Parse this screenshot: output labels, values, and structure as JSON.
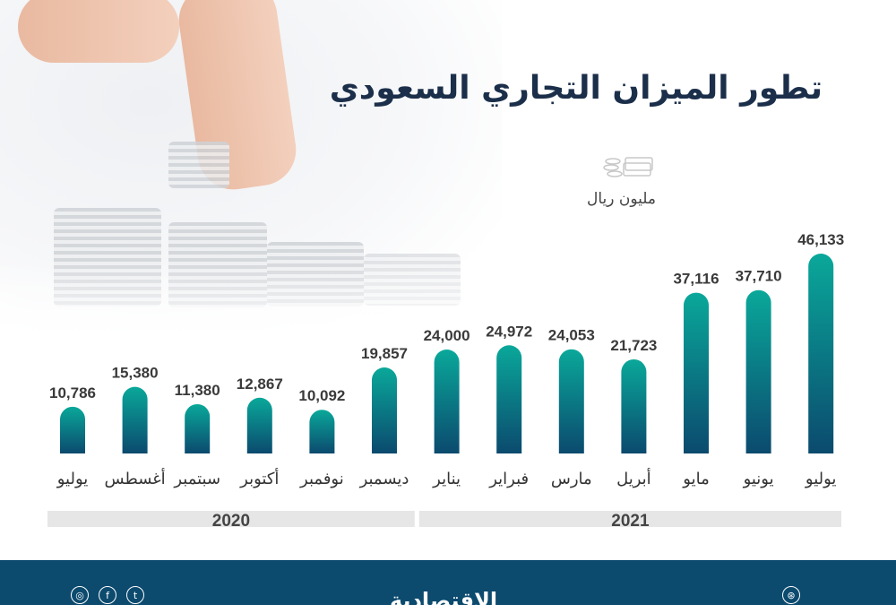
{
  "title": "تطور الميزان التجاري السعودي",
  "units": "مليون ريال",
  "logo": "الاقتصادية",
  "colors": {
    "bar_top": "#0aa89a",
    "bar_bottom": "#0b4a6e",
    "footer": "#0c4a6e",
    "year_band": "#e6e6e6"
  },
  "icons": [
    "money-stack-icon",
    "instagram-icon",
    "facebook-icon",
    "twitter-icon",
    "dribbble-icon"
  ],
  "chart_data": {
    "type": "bar",
    "title": "تطور الميزان التجاري السعودي",
    "ylabel": "مليون ريال",
    "categories": [
      "يوليو",
      "أغسطس",
      "سبتمبر",
      "أكتوبر",
      "نوفمبر",
      "ديسمبر",
      "يناير",
      "فبراير",
      "مارس",
      "أبريل",
      "مايو",
      "يونيو",
      "يوليو"
    ],
    "value_labels": [
      "10,786",
      "15,380",
      "11,380",
      "12,867",
      "10,092",
      "19,857",
      "24,000",
      "24,972",
      "24,053",
      "21,723",
      "37,116",
      "37,710",
      "46,133"
    ],
    "values": [
      10786,
      15380,
      11380,
      12867,
      10092,
      19857,
      24000,
      24972,
      24053,
      21723,
      37116,
      37710,
      46133
    ],
    "year_groups": [
      {
        "label": "2020",
        "count": 6
      },
      {
        "label": "2021",
        "count": 7
      }
    ],
    "ylim": [
      0,
      46133
    ],
    "grid": false
  }
}
